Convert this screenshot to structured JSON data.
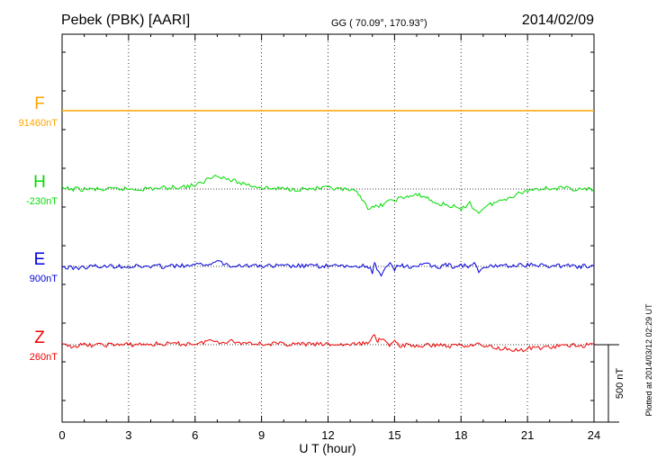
{
  "header": {
    "station": "Pebek (PBK)  [AARI]",
    "coords": "GG ( 70.09°, 170.93°)",
    "date": "2014/02/09"
  },
  "footer_note": "Plotted at 2014/03/12 02:29 UT",
  "scale_bar": {
    "label": "500 nT",
    "value_nT": 500
  },
  "chart_data": {
    "type": "line",
    "xlabel": "U T (hour)",
    "x_ticks": [
      0,
      3,
      6,
      9,
      12,
      15,
      18,
      21,
      24
    ],
    "xlim": [
      0,
      24
    ],
    "grid": true,
    "series": [
      {
        "name": "F",
        "baseline_label": "91460nT",
        "color": "#ffa500",
        "points": [
          [
            0,
            0
          ],
          [
            3,
            0
          ],
          [
            6,
            0
          ],
          [
            9,
            0
          ],
          [
            12,
            0
          ],
          [
            15,
            0
          ],
          [
            18,
            0
          ],
          [
            21,
            0
          ],
          [
            24,
            0
          ]
        ]
      },
      {
        "name": "H",
        "baseline_label": "-230nT",
        "color": "#00dd00",
        "points": [
          [
            0,
            2
          ],
          [
            0.5,
            0
          ],
          [
            1,
            -2
          ],
          [
            1.5,
            -2
          ],
          [
            2,
            -5
          ],
          [
            2.5,
            0
          ],
          [
            3,
            0
          ],
          [
            3.5,
            0
          ],
          [
            4,
            3
          ],
          [
            4.5,
            5
          ],
          [
            5,
            10
          ],
          [
            5.5,
            15
          ],
          [
            6,
            25
          ],
          [
            6.3,
            35
          ],
          [
            6.5,
            60
          ],
          [
            6.8,
            80
          ],
          [
            7,
            95
          ],
          [
            7.2,
            80
          ],
          [
            7.5,
            60
          ],
          [
            7.8,
            50
          ],
          [
            8,
            40
          ],
          [
            8.5,
            25
          ],
          [
            9,
            10
          ],
          [
            9.5,
            2
          ],
          [
            10,
            2
          ],
          [
            10.5,
            0
          ],
          [
            11,
            0
          ],
          [
            11.5,
            2
          ],
          [
            12,
            5
          ],
          [
            12.5,
            -2
          ],
          [
            13,
            -10
          ],
          [
            13.3,
            -25
          ],
          [
            13.6,
            -70
          ],
          [
            13.8,
            -120
          ],
          [
            14,
            -125
          ],
          [
            14.3,
            -110
          ],
          [
            14.6,
            -90
          ],
          [
            15,
            -70
          ],
          [
            15.4,
            -55
          ],
          [
            15.8,
            -45
          ],
          [
            16.2,
            -40
          ],
          [
            16.5,
            -60
          ],
          [
            16.8,
            -90
          ],
          [
            17.2,
            -100
          ],
          [
            17.6,
            -110
          ],
          [
            17.9,
            -130
          ],
          [
            18,
            -140
          ],
          [
            18.2,
            -110
          ],
          [
            18.4,
            -80
          ],
          [
            18.6,
            -140
          ],
          [
            18.8,
            -150
          ],
          [
            19,
            -120
          ],
          [
            19.4,
            -95
          ],
          [
            19.8,
            -75
          ],
          [
            20.2,
            -50
          ],
          [
            20.6,
            -30
          ],
          [
            21,
            -10
          ],
          [
            21.5,
            5
          ],
          [
            22,
            5
          ],
          [
            22.5,
            5
          ],
          [
            23,
            2
          ],
          [
            23.5,
            -5
          ],
          [
            24,
            0
          ]
        ]
      },
      {
        "name": "E",
        "baseline_label": "900nT",
        "color": "#0000dd",
        "points": [
          [
            0,
            -5
          ],
          [
            0.5,
            -10
          ],
          [
            1,
            -5
          ],
          [
            1.5,
            0
          ],
          [
            2,
            0
          ],
          [
            2.5,
            3
          ],
          [
            3,
            0
          ],
          [
            3.5,
            0
          ],
          [
            4,
            0
          ],
          [
            4.5,
            0
          ],
          [
            5,
            2
          ],
          [
            5.5,
            3
          ],
          [
            6,
            5
          ],
          [
            6.5,
            20
          ],
          [
            6.8,
            10
          ],
          [
            7,
            45
          ],
          [
            7.2,
            25
          ],
          [
            7.5,
            10
          ],
          [
            8,
            8
          ],
          [
            8.5,
            5
          ],
          [
            9,
            3
          ],
          [
            9.5,
            2
          ],
          [
            10,
            2
          ],
          [
            10.5,
            2
          ],
          [
            11,
            3
          ],
          [
            11.5,
            2
          ],
          [
            12,
            2
          ],
          [
            12.5,
            0
          ],
          [
            13,
            0
          ],
          [
            13.5,
            2
          ],
          [
            13.9,
            0
          ],
          [
            14,
            -40
          ],
          [
            14.1,
            20
          ],
          [
            14.2,
            -20
          ],
          [
            14.4,
            -70
          ],
          [
            14.6,
            -10
          ],
          [
            14.8,
            25
          ],
          [
            15,
            -25
          ],
          [
            15.2,
            10
          ],
          [
            15.5,
            -5
          ],
          [
            16,
            5
          ],
          [
            16.5,
            10
          ],
          [
            17,
            -5
          ],
          [
            17.3,
            15
          ],
          [
            17.6,
            0
          ],
          [
            18,
            8
          ],
          [
            18.4,
            -5
          ],
          [
            18.6,
            30
          ],
          [
            18.8,
            -50
          ],
          [
            19,
            -10
          ],
          [
            19.4,
            0
          ],
          [
            19.8,
            10
          ],
          [
            20.2,
            5
          ],
          [
            20.6,
            5
          ],
          [
            21,
            10
          ],
          [
            21.5,
            5
          ],
          [
            22,
            5
          ],
          [
            22.5,
            5
          ],
          [
            23,
            3
          ],
          [
            23.5,
            0
          ],
          [
            24,
            0
          ]
        ]
      },
      {
        "name": "Z",
        "baseline_label": "260nT",
        "color": "#ee0000",
        "points": [
          [
            0,
            -5
          ],
          [
            0.5,
            -8
          ],
          [
            1,
            -3
          ],
          [
            1.5,
            -3
          ],
          [
            2,
            0
          ],
          [
            2.5,
            0
          ],
          [
            3,
            0
          ],
          [
            3.5,
            2
          ],
          [
            4,
            2
          ],
          [
            4.5,
            5
          ],
          [
            5,
            5
          ],
          [
            5.5,
            5
          ],
          [
            6,
            8
          ],
          [
            6.3,
            10
          ],
          [
            6.6,
            30
          ],
          [
            6.8,
            20
          ],
          [
            7,
            25
          ],
          [
            7.2,
            15
          ],
          [
            7.5,
            25
          ],
          [
            7.8,
            20
          ],
          [
            8,
            10
          ],
          [
            8.5,
            15
          ],
          [
            9,
            5
          ],
          [
            9.5,
            5
          ],
          [
            10,
            5
          ],
          [
            10.5,
            3
          ],
          [
            11,
            3
          ],
          [
            11.5,
            2
          ],
          [
            12,
            2
          ],
          [
            12.5,
            0
          ],
          [
            13,
            0
          ],
          [
            13.5,
            5
          ],
          [
            13.8,
            20
          ],
          [
            14,
            45
          ],
          [
            14.1,
            60
          ],
          [
            14.2,
            20
          ],
          [
            14.3,
            35
          ],
          [
            14.5,
            50
          ],
          [
            14.7,
            -5
          ],
          [
            15,
            15
          ],
          [
            15.3,
            -10
          ],
          [
            15.6,
            0
          ],
          [
            16,
            -10
          ],
          [
            16.5,
            -5
          ],
          [
            17,
            0
          ],
          [
            17.5,
            -10
          ],
          [
            18,
            0
          ],
          [
            18.3,
            -10
          ],
          [
            18.6,
            10
          ],
          [
            18.9,
            -5
          ],
          [
            19.2,
            -10
          ],
          [
            19.6,
            -20
          ],
          [
            20,
            -25
          ],
          [
            20.4,
            -30
          ],
          [
            20.8,
            -40
          ],
          [
            21,
            -25
          ],
          [
            21.5,
            -20
          ],
          [
            22,
            -15
          ],
          [
            22.5,
            -10
          ],
          [
            23,
            -5
          ],
          [
            23.5,
            -5
          ],
          [
            24,
            5
          ]
        ]
      }
    ]
  }
}
